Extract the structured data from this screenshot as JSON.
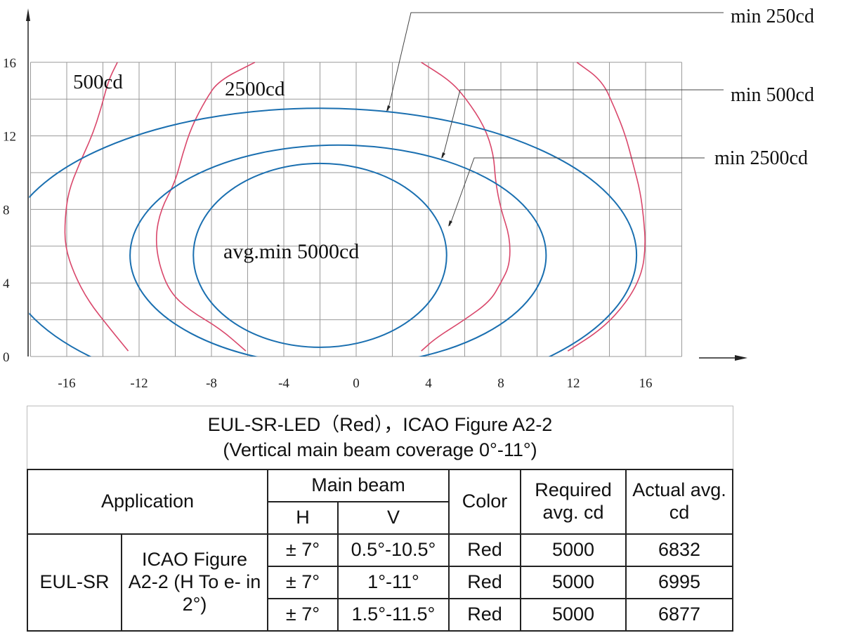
{
  "chart_data": {
    "type": "line",
    "x_ticks": [
      "-16",
      "-12",
      "-8",
      "-4",
      "0",
      "4",
      "8",
      "12",
      "16"
    ],
    "y_ticks": [
      "0",
      "4",
      "8",
      "12",
      "16"
    ],
    "xlim": [
      -18,
      18
    ],
    "ylim": [
      0,
      16
    ],
    "grid": true,
    "ellipses": [
      {
        "label": "min 250cd",
        "center": [
          -2,
          5.5
        ],
        "semi_axes": [
          17.5,
          8
        ],
        "color": "#1a6fb0"
      },
      {
        "label": "min 500cd",
        "center": [
          -1,
          5.5
        ],
        "semi_axes": [
          11.5,
          6
        ],
        "color": "#1a6fb0"
      },
      {
        "label": "min 2500cd",
        "center": [
          -2,
          5.5
        ],
        "semi_axes": [
          7,
          5
        ],
        "color": "#1a6fb0"
      }
    ],
    "isocandela_curves": [
      {
        "label": "500cd",
        "color": "#d9476b",
        "side": "left",
        "points": [
          [
            -12.6,
            0.3
          ],
          [
            -13.6,
            1.5
          ],
          [
            -14.8,
            3
          ],
          [
            -15.6,
            4.5
          ],
          [
            -16.1,
            6
          ],
          [
            -16.1,
            7.5
          ],
          [
            -15.9,
            9
          ],
          [
            -15.3,
            10.5
          ],
          [
            -14.6,
            12
          ],
          [
            -14.1,
            13.5
          ],
          [
            -13.7,
            15
          ],
          [
            -13.2,
            16
          ]
        ]
      },
      {
        "label": "2500cd",
        "color": "#d9476b",
        "side": "left",
        "points": [
          [
            -6.1,
            0.3
          ],
          [
            -7.5,
            1.5
          ],
          [
            -9.2,
            2.5
          ],
          [
            -10.3,
            3.5
          ],
          [
            -10.9,
            5
          ],
          [
            -11.1,
            6.5
          ],
          [
            -10.8,
            8
          ],
          [
            -10.0,
            9.5
          ],
          [
            -9.6,
            11
          ],
          [
            -9.1,
            12.5
          ],
          [
            -8.3,
            14
          ],
          [
            -7.6,
            15
          ],
          [
            -5.6,
            16
          ]
        ]
      },
      {
        "label": "",
        "color": "#d9476b",
        "side": "right",
        "points": [
          [
            3.6,
            0.3
          ],
          [
            4.4,
            1.0
          ],
          [
            6.0,
            2.0
          ],
          [
            7.4,
            3.0
          ],
          [
            8.0,
            4.0
          ],
          [
            8.5,
            5.0
          ],
          [
            8.5,
            6.5
          ],
          [
            8.0,
            8
          ],
          [
            7.7,
            9.5
          ],
          [
            7.6,
            11
          ],
          [
            7.1,
            12.5
          ],
          [
            6.1,
            14
          ],
          [
            5.2,
            15
          ],
          [
            3.6,
            16
          ]
        ]
      },
      {
        "label": "",
        "color": "#d9476b",
        "side": "right",
        "points": [
          [
            11.7,
            0.3
          ],
          [
            13.6,
            1.5
          ],
          [
            15.0,
            3
          ],
          [
            15.8,
            4.5
          ],
          [
            16.0,
            6
          ],
          [
            15.9,
            7.5
          ],
          [
            15.7,
            9
          ],
          [
            15.3,
            10.5
          ],
          [
            14.9,
            12
          ],
          [
            14.3,
            13.5
          ],
          [
            13.6,
            15
          ],
          [
            12.2,
            16
          ]
        ]
      }
    ],
    "annotations": [
      "min 250cd",
      "min 500cd",
      "min 2500cd",
      "avg.min 5000cd",
      "500cd",
      "2500cd"
    ]
  },
  "labels": {
    "min250": "min 250cd",
    "min500": "min 500cd",
    "min2500": "min 2500cd",
    "avg_min": "avg.min 5000cd",
    "cd500": "500cd",
    "cd2500": "2500cd"
  },
  "table": {
    "title_line1": "EUL-SR-LED（Red），ICAO Figure A2-2",
    "title_line2": "(Vertical main beam coverage 0°-11°)",
    "headers": {
      "application": "Application",
      "main_beam": "Main beam",
      "h": "H",
      "v": "V",
      "color": "Color",
      "required": "Required avg. cd",
      "actual": "Actual avg. cd"
    },
    "group": "EUL-SR",
    "figure": "ICAO Figure A2-2 (H To e- in 2°)",
    "rows": [
      {
        "h": "± 7°",
        "v": "0.5°-10.5°",
        "color": "Red",
        "required": "5000",
        "actual": "6832"
      },
      {
        "h": "± 7°",
        "v": "1°-11°",
        "color": "Red",
        "required": "5000",
        "actual": "6995"
      },
      {
        "h": "± 7°",
        "v": "1.5°-11.5°",
        "color": "Red",
        "required": "5000",
        "actual": "6877"
      }
    ]
  }
}
